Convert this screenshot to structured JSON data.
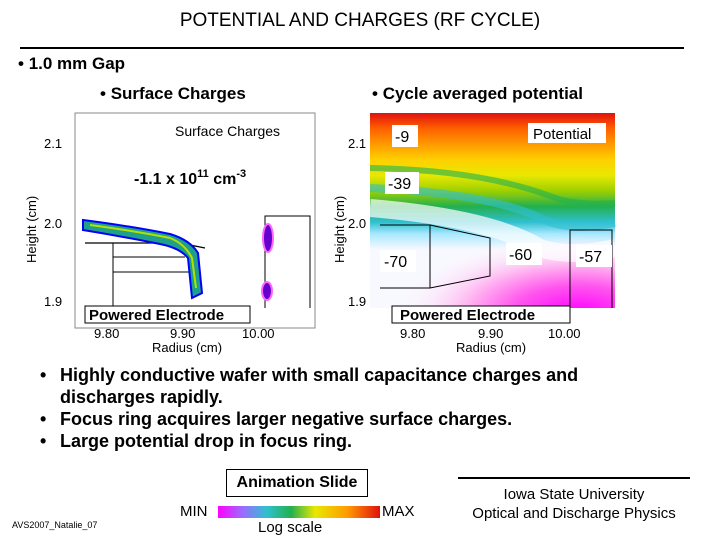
{
  "title": "POTENTIAL AND CHARGES (RF CYCLE)",
  "gap_bullet": "1.0 mm Gap",
  "left_heading": "Surface Charges",
  "right_heading": "Cycle averaged potential",
  "left_plot": {
    "legend": "Surface Charges",
    "annotation": "-1.1 x 10",
    "annotation_exp": "11",
    "annotation_unit": " cm",
    "annotation_unit_exp": "-3",
    "electrode_label": "Powered Electrode",
    "ylabel": "Height (cm)",
    "xlabel": "Radius (cm)",
    "y_ticks": [
      "2.1",
      "2.0",
      "1.9"
    ],
    "x_ticks": [
      "9.80",
      "9.90",
      "10.00"
    ]
  },
  "right_plot": {
    "legend": "Potential",
    "contour_labels": [
      "-9",
      "-39",
      "-70",
      "-60",
      "-57"
    ],
    "electrode_label": "Powered Electrode",
    "ylabel": "Height (cm)",
    "xlabel": "Radius (cm)",
    "y_ticks": [
      "2.1",
      "2.0",
      "1.9"
    ],
    "x_ticks": [
      "9.80",
      "9.90",
      "10.00"
    ]
  },
  "bullets": [
    "Highly conductive wafer with small capacitance charges and",
    "discharges rapidly.",
    "Focus ring acquires larger negative surface charges.",
    "Large potential drop in focus ring."
  ],
  "animation_label": "Animation Slide",
  "colorbar": {
    "min": "MIN",
    "max": "MAX",
    "scale": "Log scale"
  },
  "footer_left": "AVS2007_Natalie_07",
  "institution": [
    "Iowa State University",
    "Optical and Discharge Physics"
  ]
}
